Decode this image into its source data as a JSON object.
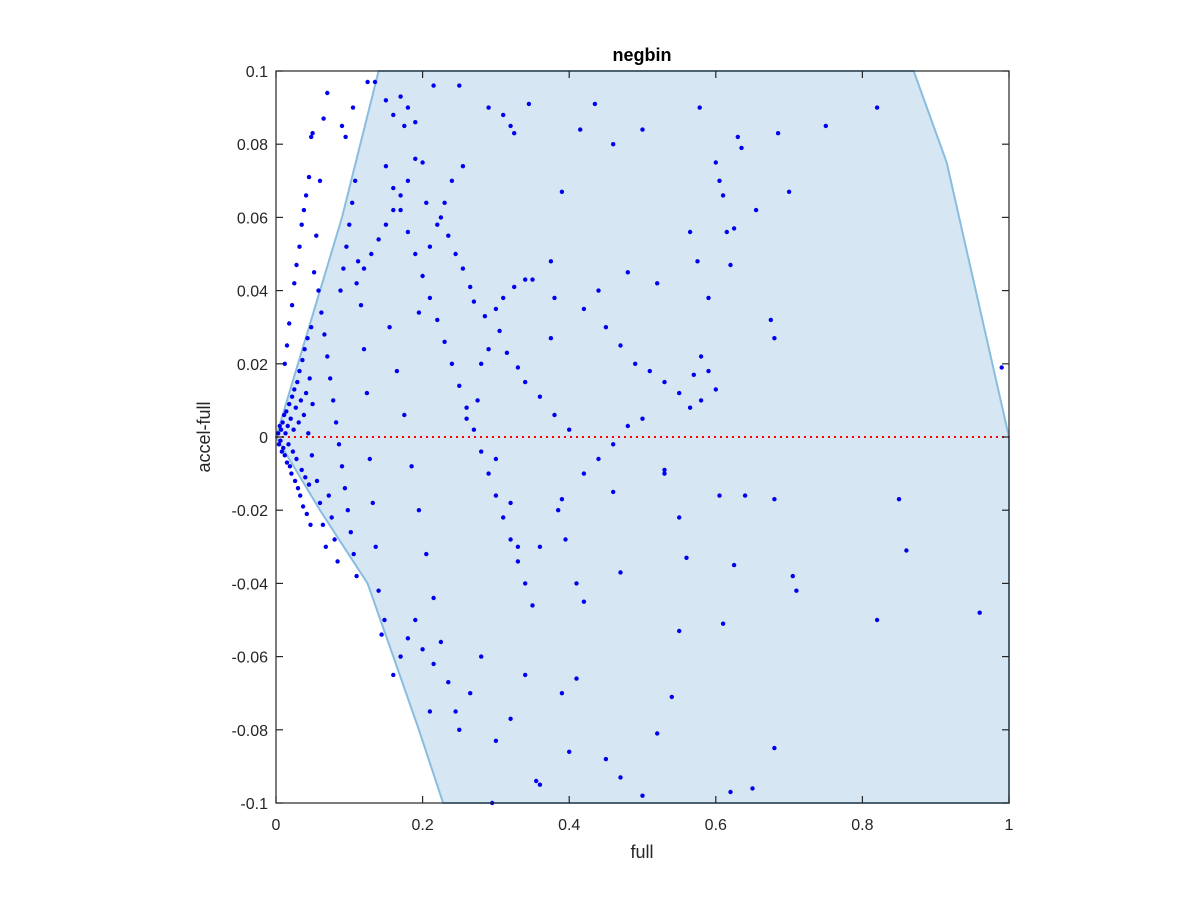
{
  "chart_data": {
    "type": "scatter",
    "title": "negbin",
    "xlabel": "full",
    "ylabel": "accel-full",
    "xlim": [
      0,
      1
    ],
    "ylim": [
      -0.1,
      0.1
    ],
    "x_ticks": [
      0,
      0.2,
      0.4,
      0.6,
      0.8,
      1
    ],
    "x_tick_labels": [
      "0",
      "0.2",
      "0.4",
      "0.6",
      "0.8",
      "1"
    ],
    "y_ticks": [
      -0.1,
      -0.08,
      -0.06,
      -0.04,
      -0.02,
      0,
      0.02,
      0.04,
      0.06,
      0.08,
      0.1
    ],
    "y_tick_labels": [
      "-0.1",
      "-0.08",
      "-0.06",
      "-0.04",
      "-0.02",
      "0",
      "0.02",
      "0.04",
      "0.06",
      "0.08",
      "0.1"
    ],
    "grid": false,
    "colors": {
      "points": "#0000ee",
      "region_fill": "#d6e6f2",
      "region_edge": "#89bde0",
      "reference_line": "#ff0000",
      "axes": "#262626"
    },
    "shaded_region": [
      [
        0,
        0
      ],
      [
        0.09,
        0.06
      ],
      [
        0.14,
        0.1
      ],
      [
        0.87,
        0.1
      ],
      [
        0.915,
        0.075
      ],
      [
        1,
        0
      ],
      [
        1,
        -0.1
      ],
      [
        0.228,
        -0.1
      ],
      [
        0.195,
        -0.08
      ],
      [
        0.16,
        -0.06
      ],
      [
        0.125,
        -0.04
      ],
      [
        0.06,
        -0.02
      ],
      [
        0,
        0
      ]
    ],
    "reference_line": {
      "y": 0,
      "style": "dotted"
    },
    "points": [
      [
        0.003,
        0.001
      ],
      [
        0.004,
        -0.002
      ],
      [
        0.005,
        0.003
      ],
      [
        0.006,
        -0.001
      ],
      [
        0.007,
        0.002
      ],
      [
        0.008,
        -0.004
      ],
      [
        0.009,
        0.004
      ],
      [
        0.01,
        -0.003
      ],
      [
        0.011,
        0.006
      ],
      [
        0.012,
        -0.005
      ],
      [
        0.013,
        0.001
      ],
      [
        0.014,
        0.007
      ],
      [
        0.015,
        -0.007
      ],
      [
        0.016,
        0.003
      ],
      [
        0.017,
        -0.002
      ],
      [
        0.018,
        0.009
      ],
      [
        0.019,
        -0.008
      ],
      [
        0.02,
        0.005
      ],
      [
        0.021,
        -0.01
      ],
      [
        0.022,
        0.011
      ],
      [
        0.023,
        -0.004
      ],
      [
        0.024,
        0.002
      ],
      [
        0.025,
        0.013
      ],
      [
        0.026,
        -0.012
      ],
      [
        0.027,
        0.008
      ],
      [
        0.028,
        -0.006
      ],
      [
        0.029,
        0.015
      ],
      [
        0.03,
        -0.014
      ],
      [
        0.031,
        0.004
      ],
      [
        0.032,
        0.018
      ],
      [
        0.033,
        -0.016
      ],
      [
        0.034,
        0.01
      ],
      [
        0.035,
        -0.009
      ],
      [
        0.036,
        0.021
      ],
      [
        0.037,
        -0.019
      ],
      [
        0.038,
        0.006
      ],
      [
        0.039,
        0.024
      ],
      [
        0.04,
        -0.011
      ],
      [
        0.041,
        0.012
      ],
      [
        0.042,
        -0.021
      ],
      [
        0.043,
        0.027
      ],
      [
        0.044,
        0.001
      ],
      [
        0.045,
        -0.013
      ],
      [
        0.046,
        0.016
      ],
      [
        0.047,
        -0.024
      ],
      [
        0.048,
        0.03
      ],
      [
        0.049,
        -0.005
      ],
      [
        0.05,
        0.009
      ],
      [
        0.012,
        0.02
      ],
      [
        0.015,
        0.025
      ],
      [
        0.018,
        0.031
      ],
      [
        0.022,
        0.036
      ],
      [
        0.025,
        0.042
      ],
      [
        0.028,
        0.047
      ],
      [
        0.032,
        0.052
      ],
      [
        0.035,
        0.058
      ],
      [
        0.038,
        0.062
      ],
      [
        0.041,
        0.066
      ],
      [
        0.045,
        0.071
      ],
      [
        0.048,
        0.082
      ],
      [
        0.05,
        0.083
      ],
      [
        0.07,
        0.094
      ],
      [
        0.065,
        0.087
      ],
      [
        0.06,
        0.07
      ],
      [
        0.055,
        0.055
      ],
      [
        0.052,
        0.045
      ],
      [
        0.058,
        0.04
      ],
      [
        0.062,
        0.034
      ],
      [
        0.066,
        0.028
      ],
      [
        0.07,
        0.022
      ],
      [
        0.074,
        0.016
      ],
      [
        0.078,
        0.01
      ],
      [
        0.082,
        0.004
      ],
      [
        0.086,
        -0.002
      ],
      [
        0.09,
        -0.008
      ],
      [
        0.094,
        -0.014
      ],
      [
        0.098,
        -0.02
      ],
      [
        0.102,
        -0.026
      ],
      [
        0.106,
        -0.032
      ],
      [
        0.11,
        -0.038
      ],
      [
        0.056,
        -0.012
      ],
      [
        0.06,
        -0.018
      ],
      [
        0.064,
        -0.024
      ],
      [
        0.068,
        -0.03
      ],
      [
        0.072,
        -0.016
      ],
      [
        0.076,
        -0.022
      ],
      [
        0.08,
        -0.028
      ],
      [
        0.084,
        -0.034
      ],
      [
        0.088,
        0.04
      ],
      [
        0.092,
        0.046
      ],
      [
        0.096,
        0.052
      ],
      [
        0.1,
        0.058
      ],
      [
        0.104,
        0.064
      ],
      [
        0.108,
        0.07
      ],
      [
        0.112,
        0.048
      ],
      [
        0.116,
        0.036
      ],
      [
        0.12,
        0.024
      ],
      [
        0.124,
        0.012
      ],
      [
        0.128,
        -0.006
      ],
      [
        0.132,
        -0.018
      ],
      [
        0.136,
        -0.03
      ],
      [
        0.14,
        -0.042
      ],
      [
        0.144,
        -0.054
      ],
      [
        0.148,
        -0.05
      ],
      [
        0.09,
        0.085
      ],
      [
        0.095,
        0.082
      ],
      [
        0.105,
        0.09
      ],
      [
        0.125,
        0.097
      ],
      [
        0.135,
        0.097
      ],
      [
        0.15,
        0.092
      ],
      [
        0.16,
        0.088
      ],
      [
        0.17,
        0.093
      ],
      [
        0.175,
        0.085
      ],
      [
        0.18,
        0.09
      ],
      [
        0.19,
        0.086
      ],
      [
        0.15,
        0.074
      ],
      [
        0.16,
        0.068
      ],
      [
        0.17,
        0.062
      ],
      [
        0.18,
        0.056
      ],
      [
        0.19,
        0.05
      ],
      [
        0.2,
        0.044
      ],
      [
        0.21,
        0.038
      ],
      [
        0.22,
        0.032
      ],
      [
        0.23,
        0.026
      ],
      [
        0.24,
        0.02
      ],
      [
        0.25,
        0.014
      ],
      [
        0.26,
        0.008
      ],
      [
        0.27,
        0.002
      ],
      [
        0.28,
        -0.004
      ],
      [
        0.29,
        -0.01
      ],
      [
        0.3,
        -0.016
      ],
      [
        0.31,
        -0.022
      ],
      [
        0.32,
        -0.028
      ],
      [
        0.33,
        -0.034
      ],
      [
        0.34,
        -0.04
      ],
      [
        0.35,
        -0.046
      ],
      [
        0.155,
        0.03
      ],
      [
        0.165,
        0.018
      ],
      [
        0.175,
        0.006
      ],
      [
        0.185,
        -0.008
      ],
      [
        0.195,
        -0.02
      ],
      [
        0.205,
        -0.032
      ],
      [
        0.215,
        -0.044
      ],
      [
        0.225,
        -0.056
      ],
      [
        0.16,
        -0.065
      ],
      [
        0.17,
        -0.06
      ],
      [
        0.18,
        -0.055
      ],
      [
        0.19,
        -0.05
      ],
      [
        0.2,
        -0.058
      ],
      [
        0.215,
        -0.062
      ],
      [
        0.235,
        -0.067
      ],
      [
        0.245,
        -0.075
      ],
      [
        0.21,
        -0.075
      ],
      [
        0.25,
        -0.08
      ],
      [
        0.265,
        -0.07
      ],
      [
        0.28,
        -0.06
      ],
      [
        0.3,
        -0.083
      ],
      [
        0.32,
        -0.077
      ],
      [
        0.34,
        -0.065
      ],
      [
        0.355,
        -0.094
      ],
      [
        0.36,
        -0.095
      ],
      [
        0.39,
        -0.07
      ],
      [
        0.4,
        -0.086
      ],
      [
        0.41,
        -0.066
      ],
      [
        0.45,
        -0.088
      ],
      [
        0.47,
        -0.093
      ],
      [
        0.5,
        -0.098
      ],
      [
        0.52,
        -0.081
      ],
      [
        0.295,
        -0.1
      ],
      [
        0.54,
        -0.071
      ],
      [
        0.55,
        -0.053
      ],
      [
        0.62,
        -0.097
      ],
      [
        0.65,
        -0.096
      ],
      [
        0.68,
        -0.085
      ],
      [
        0.61,
        -0.051
      ],
      [
        0.82,
        -0.05
      ],
      [
        0.96,
        -0.048
      ],
      [
        0.86,
        -0.031
      ],
      [
        0.85,
        -0.017
      ],
      [
        0.705,
        -0.038
      ],
      [
        0.71,
        -0.042
      ],
      [
        0.68,
        -0.017
      ],
      [
        0.64,
        -0.016
      ],
      [
        0.605,
        -0.016
      ],
      [
        0.625,
        -0.035
      ],
      [
        0.56,
        -0.033
      ],
      [
        0.55,
        -0.022
      ],
      [
        0.53,
        -0.01
      ],
      [
        0.53,
        -0.009
      ],
      [
        0.47,
        -0.037
      ],
      [
        0.46,
        -0.015
      ],
      [
        0.42,
        -0.045
      ],
      [
        0.41,
        -0.04
      ],
      [
        0.395,
        -0.028
      ],
      [
        0.385,
        -0.02
      ],
      [
        0.39,
        -0.017
      ],
      [
        0.36,
        -0.03
      ],
      [
        0.33,
        -0.03
      ],
      [
        0.32,
        -0.018
      ],
      [
        0.3,
        -0.006
      ],
      [
        0.25,
        0.096
      ],
      [
        0.215,
        0.096
      ],
      [
        0.29,
        0.09
      ],
      [
        0.31,
        0.088
      ],
      [
        0.32,
        0.085
      ],
      [
        0.325,
        0.083
      ],
      [
        0.345,
        0.091
      ],
      [
        0.435,
        0.091
      ],
      [
        0.415,
        0.084
      ],
      [
        0.46,
        0.08
      ],
      [
        0.5,
        0.084
      ],
      [
        0.578,
        0.09
      ],
      [
        0.63,
        0.082
      ],
      [
        0.635,
        0.079
      ],
      [
        0.685,
        0.083
      ],
      [
        0.75,
        0.085
      ],
      [
        0.82,
        0.09
      ],
      [
        0.7,
        0.067
      ],
      [
        0.655,
        0.062
      ],
      [
        0.6,
        0.075
      ],
      [
        0.605,
        0.07
      ],
      [
        0.61,
        0.066
      ],
      [
        0.565,
        0.056
      ],
      [
        0.575,
        0.048
      ],
      [
        0.62,
        0.047
      ],
      [
        0.615,
        0.056
      ],
      [
        0.625,
        0.057
      ],
      [
        0.59,
        0.038
      ],
      [
        0.675,
        0.032
      ],
      [
        0.68,
        0.027
      ],
      [
        0.58,
        0.01
      ],
      [
        0.99,
        0.019
      ],
      [
        0.52,
        0.042
      ],
      [
        0.48,
        0.045
      ],
      [
        0.44,
        0.04
      ],
      [
        0.42,
        0.035
      ],
      [
        0.39,
        0.067
      ],
      [
        0.375,
        0.048
      ],
      [
        0.38,
        0.038
      ],
      [
        0.375,
        0.027
      ],
      [
        0.35,
        0.043
      ],
      [
        0.34,
        0.043
      ],
      [
        0.325,
        0.041
      ],
      [
        0.31,
        0.038
      ],
      [
        0.3,
        0.035
      ],
      [
        0.29,
        0.024
      ],
      [
        0.28,
        0.02
      ],
      [
        0.275,
        0.01
      ],
      [
        0.26,
        0.005
      ],
      [
        0.255,
        0.074
      ],
      [
        0.24,
        0.07
      ],
      [
        0.23,
        0.064
      ],
      [
        0.22,
        0.058
      ],
      [
        0.21,
        0.052
      ],
      [
        0.2,
        0.075
      ],
      [
        0.19,
        0.076
      ],
      [
        0.18,
        0.07
      ],
      [
        0.17,
        0.066
      ],
      [
        0.16,
        0.062
      ],
      [
        0.15,
        0.058
      ],
      [
        0.14,
        0.054
      ],
      [
        0.13,
        0.05
      ],
      [
        0.12,
        0.046
      ],
      [
        0.11,
        0.042
      ],
      [
        0.45,
        0.03
      ],
      [
        0.47,
        0.025
      ],
      [
        0.49,
        0.02
      ],
      [
        0.51,
        0.018
      ],
      [
        0.53,
        0.015
      ],
      [
        0.55,
        0.012
      ],
      [
        0.565,
        0.008
      ],
      [
        0.57,
        0.017
      ],
      [
        0.58,
        0.022
      ],
      [
        0.59,
        0.018
      ],
      [
        0.6,
        0.013
      ],
      [
        0.5,
        0.005
      ],
      [
        0.48,
        0.003
      ],
      [
        0.46,
        -0.002
      ],
      [
        0.44,
        -0.006
      ],
      [
        0.42,
        -0.01
      ],
      [
        0.4,
        0.002
      ],
      [
        0.38,
        0.006
      ],
      [
        0.36,
        0.011
      ],
      [
        0.34,
        0.015
      ],
      [
        0.33,
        0.019
      ],
      [
        0.315,
        0.023
      ],
      [
        0.305,
        0.029
      ],
      [
        0.285,
        0.033
      ],
      [
        0.27,
        0.037
      ],
      [
        0.265,
        0.041
      ],
      [
        0.255,
        0.046
      ],
      [
        0.245,
        0.05
      ],
      [
        0.235,
        0.055
      ],
      [
        0.225,
        0.06
      ],
      [
        0.205,
        0.064
      ],
      [
        0.195,
        0.034
      ]
    ]
  }
}
